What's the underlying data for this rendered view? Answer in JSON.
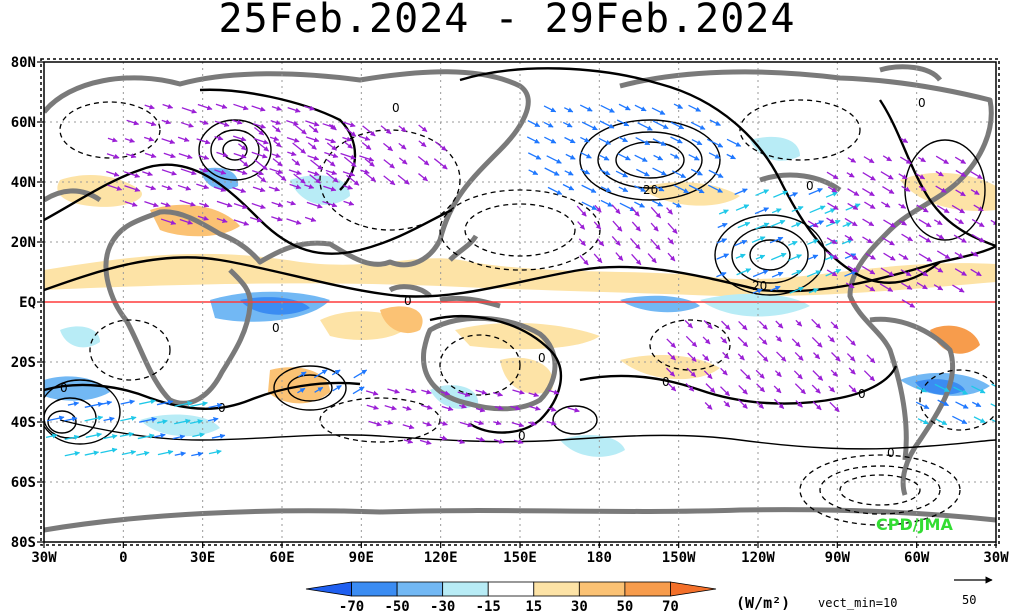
{
  "title": "25Feb.2024 - 29Feb.2024",
  "lat_labels": [
    "80N",
    "60N",
    "40N",
    "20N",
    "EQ",
    "20S",
    "40S",
    "60S",
    "80S"
  ],
  "lon_labels": [
    "30W",
    "0",
    "30E",
    "60E",
    "90E",
    "120E",
    "150E",
    "180",
    "150W",
    "120W",
    "90W",
    "60W",
    "30W"
  ],
  "colorbar": {
    "ticks": [
      "-70",
      "-50",
      "-30",
      "-15",
      "15",
      "30",
      "50",
      "70"
    ],
    "colors": [
      "#1f5ff0",
      "#3b8cf2",
      "#72b8f4",
      "#b8ecf6",
      "#ffffff",
      "#fde3a6",
      "#fbc274",
      "#f79c4c",
      "#f3702a"
    ],
    "unit": "(W/m²)",
    "vector_min": "vect_min=10",
    "ref_vector": "50"
  },
  "contour_labels": {
    "zero": "0",
    "twenty": "20"
  },
  "credit": "CPD/JMA",
  "equator_color": "#ff3b3b",
  "vector_colors": [
    "#9b1fd6",
    "#1f78ff",
    "#1fd6f0",
    "#2fd040"
  ]
}
